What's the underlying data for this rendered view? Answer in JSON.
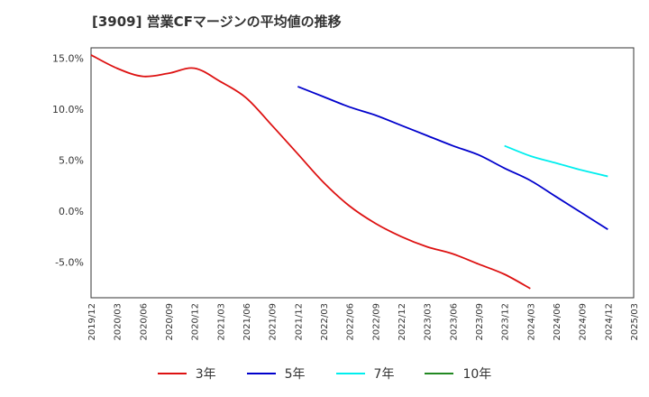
{
  "chart_data": {
    "type": "line",
    "title": "[3909]  営業CFマージンの平均値の推移",
    "xlabel": "",
    "ylabel": "",
    "ylim": [
      -8.5,
      16
    ],
    "yticks": [
      15,
      10,
      5,
      0,
      -5
    ],
    "ytick_labels": [
      "15.0%",
      "10.0%",
      "5.0%",
      "0.0%",
      "-5.0%"
    ],
    "x_tick_labels": [
      "2019/12",
      "2020/03",
      "2020/06",
      "2020/09",
      "2020/12",
      "2021/03",
      "2021/06",
      "2021/09",
      "2021/12",
      "2022/03",
      "2022/06",
      "2022/09",
      "2022/12",
      "2023/03",
      "2023/06",
      "2023/09",
      "2023/12",
      "2024/03",
      "2024/06",
      "2024/09",
      "2024/12",
      "2025/03"
    ],
    "grid": true,
    "legend_position": "bottom",
    "series": [
      {
        "name": "3年",
        "color": "#dd1111",
        "values": [
          15.3,
          14.0,
          13.2,
          13.5,
          14.0,
          12.7,
          11.1,
          8.4,
          5.6,
          2.8,
          0.5,
          -1.2,
          -2.5,
          -3.5,
          -4.2,
          -5.2,
          -6.2,
          -7.6
        ],
        "x_start_index": 0
      },
      {
        "name": "5年",
        "color": "#0000cc",
        "values": [
          12.2,
          11.2,
          10.2,
          9.4,
          8.4,
          7.4,
          6.4,
          5.5,
          4.2,
          3.0,
          1.4,
          -0.2,
          -1.8
        ],
        "x_start_index": 8
      },
      {
        "name": "7年",
        "color": "#00eeee",
        "values": [
          6.4,
          5.4,
          4.7,
          4.0,
          3.4
        ],
        "x_start_index": 16
      },
      {
        "name": "10年",
        "color": "#228822",
        "values": [],
        "x_start_index": 0
      }
    ]
  }
}
